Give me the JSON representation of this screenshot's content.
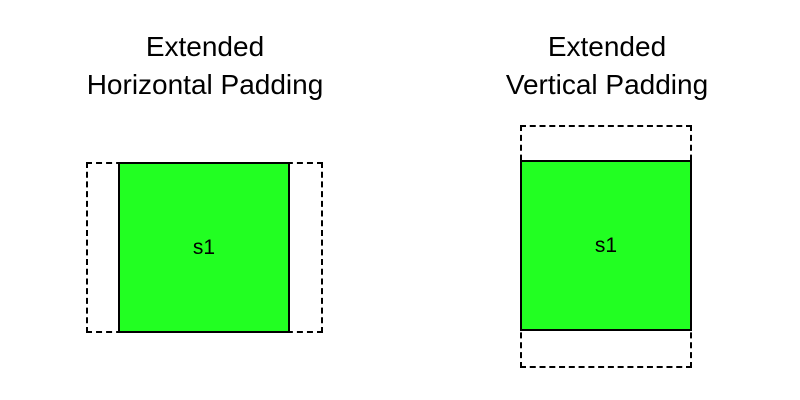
{
  "panels": [
    {
      "title_lines": [
        "Extended",
        "Horizontal Padding"
      ],
      "shape_label": "s1"
    },
    {
      "title_lines": [
        "Extended",
        "Vertical Padding"
      ],
      "shape_label": "s1"
    }
  ],
  "colors": {
    "shape_fill": "#22ff22",
    "border": "#000000",
    "background": "#ffffff"
  }
}
